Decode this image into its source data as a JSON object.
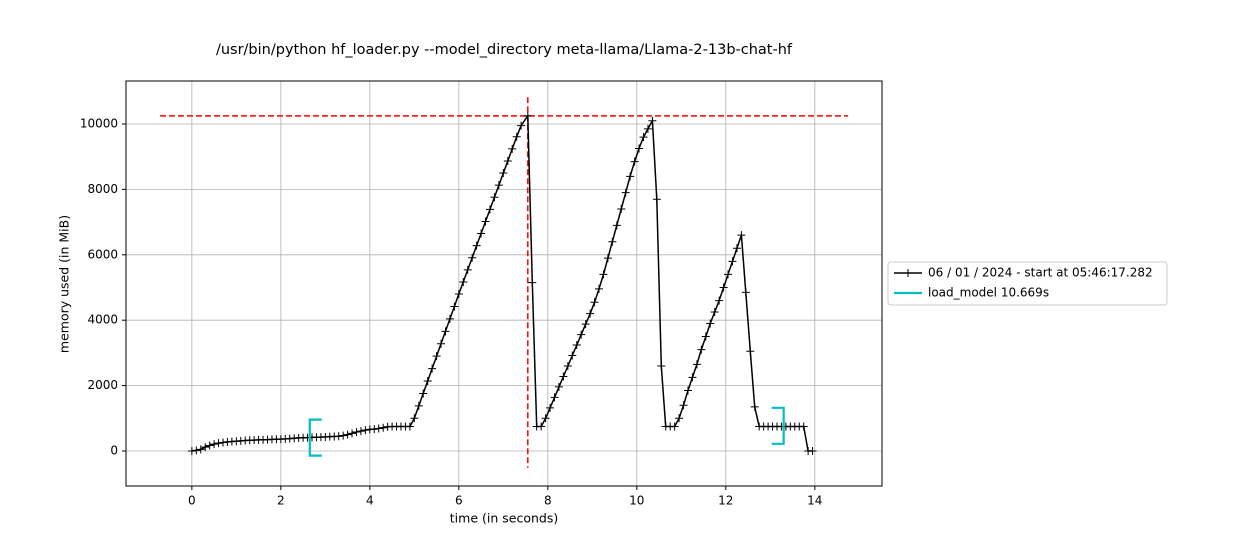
{
  "chart_data": {
    "type": "line",
    "title": "/usr/bin/python hf_loader.py --model_directory meta-llama/Llama-2-13b-chat-hf",
    "x_label": "time (in seconds)",
    "y_label": "memory used (in MiB)",
    "xlim": [
      -1.48,
      15.51
    ],
    "ylim": [
      -1070,
      11315
    ],
    "xticks": [
      0,
      2,
      4,
      6,
      8,
      10,
      12,
      14
    ],
    "yticks": [
      0,
      2000,
      4000,
      6000,
      8000,
      10000
    ],
    "grid": true,
    "legend": "outside right",
    "x": [
      0.0,
      0.1,
      0.2,
      0.3,
      0.4,
      0.5,
      0.6,
      0.7,
      0.8,
      0.9,
      1.0,
      1.1,
      1.2,
      1.3,
      1.4,
      1.5,
      1.6,
      1.7,
      1.8,
      1.9,
      2.0,
      2.1,
      2.2,
      2.3,
      2.4,
      2.5,
      2.6,
      2.7,
      2.8,
      2.9,
      3.0,
      3.1,
      3.2,
      3.3,
      3.4,
      3.5,
      3.6,
      3.7,
      3.8,
      3.9,
      4.0,
      4.1,
      4.2,
      4.3,
      4.4,
      4.5,
      4.6,
      4.7,
      4.8,
      4.9,
      5.0,
      5.1,
      5.2,
      5.3,
      5.4,
      5.5,
      5.6,
      5.7,
      5.8,
      5.9,
      6.0,
      6.1,
      6.2,
      6.3,
      6.4,
      6.5,
      6.6,
      6.7,
      6.8,
      6.9,
      7.0,
      7.1,
      7.2,
      7.3,
      7.4,
      7.55,
      7.65,
      7.75,
      7.85,
      7.95,
      8.05,
      8.15,
      8.25,
      8.35,
      8.45,
      8.55,
      8.65,
      8.75,
      8.85,
      8.95,
      9.05,
      9.15,
      9.25,
      9.35,
      9.45,
      9.55,
      9.65,
      9.75,
      9.85,
      9.95,
      10.05,
      10.15,
      10.25,
      10.35,
      10.45,
      10.55,
      10.65,
      10.75,
      10.85,
      10.95,
      11.05,
      11.15,
      11.25,
      11.35,
      11.45,
      11.55,
      11.65,
      11.75,
      11.85,
      11.95,
      12.05,
      12.15,
      12.25,
      12.35,
      12.45,
      12.55,
      12.65,
      12.75,
      12.85,
      12.95,
      13.05,
      13.15,
      13.25,
      13.35,
      13.45,
      13.55,
      13.65,
      13.75,
      13.85,
      13.95
    ],
    "series": [
      {
        "name": "06 / 01 / 2024 - start at 05:46:17.282",
        "color": "#000000",
        "values": [
          0,
          20,
          50,
          120,
          170,
          210,
          240,
          260,
          280,
          290,
          300,
          310,
          320,
          330,
          335,
          340,
          345,
          350,
          355,
          360,
          365,
          370,
          380,
          390,
          400,
          405,
          410,
          415,
          420,
          425,
          430,
          440,
          445,
          450,
          470,
          500,
          540,
          580,
          610,
          640,
          660,
          670,
          690,
          710,
          740,
          750,
          750,
          750,
          750,
          750,
          1000,
          1380,
          1760,
          2140,
          2520,
          2900,
          3280,
          3660,
          4040,
          4420,
          4800,
          5170,
          5540,
          5910,
          6280,
          6650,
          7020,
          7390,
          7760,
          8130,
          8500,
          8870,
          9240,
          9610,
          9950,
          10250,
          5150,
          750,
          750,
          1000,
          1320,
          1640,
          1960,
          2280,
          2600,
          2920,
          3240,
          3560,
          3880,
          4200,
          4550,
          4960,
          5400,
          5900,
          6400,
          6900,
          7400,
          7900,
          8400,
          8850,
          9250,
          9600,
          9850,
          10100,
          7700,
          2600,
          750,
          750,
          750,
          1000,
          1400,
          1850,
          2250,
          2650,
          3100,
          3500,
          3900,
          4250,
          4600,
          5000,
          5400,
          5800,
          6200,
          6600,
          4850,
          3050,
          1350,
          750,
          750,
          750,
          750,
          750,
          750,
          750,
          750,
          750,
          750,
          750,
          0,
          0
        ]
      }
    ],
    "peak": {
      "x": 7.55,
      "y": 10250,
      "color": "#ff0000"
    },
    "functions": [
      {
        "name": "load_model 10.669s",
        "color": "#00bfbf",
        "start": {
          "x": 2.65,
          "y": 410
        },
        "end": {
          "x": 13.3,
          "y": 770
        }
      }
    ]
  }
}
